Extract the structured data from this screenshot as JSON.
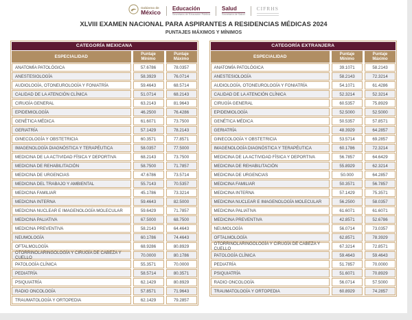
{
  "page": {
    "logo_bar": {
      "gobierno_small": "Gobierno de",
      "gobierno_large": "México",
      "educacion_label": "Educación",
      "educacion_sub": "Secretaría de Educación Pública",
      "salud_label": "Salud",
      "salud_sub": "Secretaría de Salud",
      "cifrhs_label": "CIFRHS"
    },
    "title": "XLVIII EXAMEN NACIONAL PARA ASPIRANTES A RESIDENCIAS MÉDICAS 2024",
    "subtitle": "PUNTAJES MÁXIMOS Y MÍNIMOS"
  },
  "column_headers": {
    "especialidad": "ESPECIALIDAD",
    "min": "Puntaje Mínimo",
    "max": "Puntaje Máximo"
  },
  "colors": {
    "maroon_header": "#5e1a33",
    "gold_header": "#b08e63",
    "table_border": "#c9a87c",
    "row_alt": "#efeff2"
  },
  "tables": [
    {
      "category": "CATEGORÍA MEXICANA",
      "rows": [
        [
          "ANATOMÍA PATOLÓGICA",
          "57.6786",
          "78.0357"
        ],
        [
          "ANESTESIOLOGÍA",
          "58.3929",
          "76.0714"
        ],
        [
          "AUDIOLOGÍA, OTONEUROLOGÍA Y FONIATRÍA",
          "59.4643",
          "68.5714"
        ],
        [
          "CALIDAD DE LA ATENCIÓN CLÍNICA",
          "51.0714",
          "68.2143"
        ],
        [
          "CIRUGÍA GENERAL",
          "63.2143",
          "81.9643"
        ],
        [
          "EPIDEMIOLOGÍA",
          "46.2500",
          "76.4286"
        ],
        [
          "GENÉTICA MÉDICA",
          "61.6071",
          "73.7500"
        ],
        [
          "GERIATRÍA",
          "57.1429",
          "78.2143"
        ],
        [
          "GINECOLOGÍA Y OBSTETRICIA",
          "60.3571",
          "77.8571"
        ],
        [
          "IMAGENOLOGÍA DIAGNÓSTICA Y TERAPÉUTICA",
          "58.0357",
          "77.5000"
        ],
        [
          "MEDICINA DE LA ACTIVIDAD FÍSICA Y DEPORTIVA",
          "68.2143",
          "73.7500"
        ],
        [
          "MEDICINA DE REHABILITACIÓN",
          "58.7500",
          "71.7857"
        ],
        [
          "MEDICINA DE URGENCIAS",
          "47.6786",
          "73.5714"
        ],
        [
          "MEDICINA DEL TRABAJO Y AMBIENTAL",
          "55.7143",
          "70.5357"
        ],
        [
          "MEDICINA FAMILIAR",
          "45.1786",
          "73.3214"
        ],
        [
          "MEDICINA INTERNA",
          "59.4643",
          "82.5000"
        ],
        [
          "MEDICINA NUCLEAR E IMAGENOLOGÍA MOLECULAR",
          "59.6429",
          "71.7857"
        ],
        [
          "MEDICINA PALIATIVA",
          "67.5000",
          "68.7500"
        ],
        [
          "MEDICINA PREVENTIVA",
          "58.2143",
          "64.4643"
        ],
        [
          "NEUMOLOGÍA",
          "60.1786",
          "74.4643"
        ],
        [
          "OFTALMOLOGÍA",
          "68.9286",
          "80.8929"
        ],
        [
          "OTORRINOLARINGOLOGÍA Y CIRUGÍA DE CABEZA Y CUELLO",
          "70.0000",
          "80.1786"
        ],
        [
          "PATOLOGÍA CLÍNICA",
          "55.3571",
          "70.0000"
        ],
        [
          "PEDIATRÍA",
          "58.5714",
          "80.3571"
        ],
        [
          "PSIQUIATRÍA",
          "62.1429",
          "80.8929"
        ],
        [
          "RADIO ONCOLOGÍA",
          "57.8571",
          "71.9643"
        ],
        [
          "TRAUMATOLOGÍA Y ORTOPEDIA",
          "62.1429",
          "79.2857"
        ]
      ]
    },
    {
      "category": "CATEGORÍA EXTRANJERA",
      "rows": [
        [
          "ANATOMÍA PATOLÓGICA",
          "39.1071",
          "58.2143"
        ],
        [
          "ANESTESIOLOGÍA",
          "58.2143",
          "72.3214"
        ],
        [
          "AUDIOLOGÍA, OTONEUROLOGÍA Y FONIATRÍA",
          "54.1071",
          "61.4286"
        ],
        [
          "CALIDAD DE LA ATENCIÓN CLÍNICA",
          "52.3214",
          "52.3214"
        ],
        [
          "CIRUGÍA GENERAL",
          "60.5357",
          "75.8929"
        ],
        [
          "EPIDEMIOLOGÍA",
          "52.5000",
          "52.5000"
        ],
        [
          "GENÉTICA MÉDICA",
          "50.5357",
          "57.8571"
        ],
        [
          "GERIATRÍA",
          "48.3929",
          "64.2857"
        ],
        [
          "GINECOLOGÍA Y OBSTETRICIA",
          "53.5714",
          "69.2857"
        ],
        [
          "IMAGENOLOGÍA DIAGNÓSTICA Y TERAPÉUTICA",
          "60.1786",
          "72.3214"
        ],
        [
          "MEDICINA DE LA ACTIVIDAD FÍSICA Y DEPORTIVA",
          "56.7857",
          "64.6429"
        ],
        [
          "MEDICINA DE REHABILITACIÓN",
          "55.8929",
          "62.3214"
        ],
        [
          "MEDICINA DE URGENCIAS",
          "50.000",
          "64.2857"
        ],
        [
          "MEDICINA FAMILIAR",
          "50.3571",
          "56.7857"
        ],
        [
          "MEDICINA INTERNA",
          "57.1429",
          "75.3571"
        ],
        [
          "MEDICINA NUCLEAR E IMAGENOLOGÍA MOLECULAR",
          "56.2500",
          "58.0357"
        ],
        [
          "MEDICINA PALIATIVA",
          "61.6071",
          "61.6071"
        ],
        [
          "MEDICINA PREVENTIVA",
          "42.8571",
          "52.6786"
        ],
        [
          "NEUMOLOGÍA",
          "56.0714",
          "73.0357"
        ],
        [
          "OFTALMOLOGÍA",
          "62.8571",
          "78.3929"
        ],
        [
          "OTORRINOLARINGOLOGÍA Y CIRUGÍA DE CABEZA Y CUELLO",
          "67.3214",
          "72.8571"
        ],
        [
          "PATOLOGÍA CLÍNICA",
          "59.4643",
          "59.4643"
        ],
        [
          "PEDIATRÍA",
          "51.7857",
          "70.0000"
        ],
        [
          "PSIQUIATRÍA",
          "51.6071",
          "70.8929"
        ],
        [
          "RADIO ONCOLOGÍA",
          "56.0714",
          "57.5000"
        ],
        [
          "TRAUMATOLOGÍA Y ORTOPEDIA",
          "60.8929",
          "74.2857"
        ]
      ]
    }
  ]
}
